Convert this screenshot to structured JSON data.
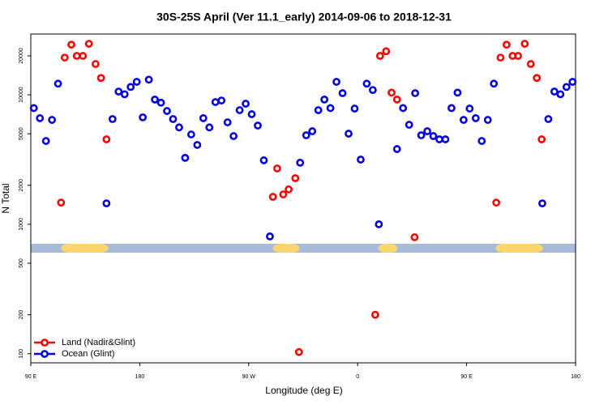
{
  "chart_data": {
    "type": "scatter",
    "title": "30S-25S April (Ver 11.1_early)   2014-09-06 to 2018-12-31",
    "x_label": "Longitude (deg E)",
    "y_label": "N Total",
    "xlim": [
      90,
      540
    ],
    "xticks": [
      {
        "value": 90,
        "label": "90 E"
      },
      180,
      {
        "value": 270,
        "label": "90 W"
      },
      {
        "value": 360,
        "label": "0"
      },
      {
        "value": 450,
        "label": "90 E"
      },
      {
        "value": 540,
        "label": "180"
      }
    ],
    "ylim": [
      85,
      29500
    ],
    "yticks": [
      100,
      200,
      500,
      1000,
      2000,
      5000,
      10000,
      20000
    ],
    "log_y": true,
    "legend": "bottom-left",
    "land_mask": {
      "ocean_color": "#a7bcd9",
      "land_color": "#fdd76e",
      "spans": [
        [
          115,
          154
        ],
        [
          290,
          312
        ],
        [
          377,
          393
        ],
        [
          474,
          513
        ]
      ]
    },
    "series": [
      {
        "name": "Land (Nadir&Glint)",
        "color": "#ff0000",
        "x": [
          115,
          118,
          123.5,
          128,
          133,
          138,
          143.5,
          148,
          152.5,
          290,
          293.5,
          298.5,
          303,
          308.5,
          311.5,
          374.5,
          378.5,
          383.5,
          388,
          392.5,
          407,
          474.5,
          478,
          483,
          488,
          492.5,
          498,
          503,
          508,
          512
        ],
        "values": [
          1470,
          19400,
          24400,
          20000,
          20000,
          24800,
          17300,
          13500,
          4530,
          1630,
          2700,
          1700,
          1860,
          2270,
          103,
          200,
          20000,
          21700,
          10400,
          9200,
          794,
          1470,
          19400,
          24400,
          20000,
          20000,
          24800,
          17300,
          13500,
          4530
        ]
      },
      {
        "name": "Ocean (Glint)",
        "color": "#0000e0",
        "x": [
          92.5,
          97.5,
          102.5,
          107.5,
          112.5,
          152.5,
          157.5,
          162.5,
          167.5,
          172.5,
          177.5,
          182.5,
          187.5,
          192.5,
          197.5,
          202.5,
          207.5,
          212.5,
          217.5,
          222.5,
          227.5,
          232.5,
          237.5,
          242.5,
          247.5,
          252.5,
          257.5,
          262.5,
          267.5,
          272.5,
          277.5,
          282.5,
          287.5,
          312.5,
          317.5,
          322.5,
          327.5,
          332.5,
          337.5,
          342.5,
          347.5,
          352.5,
          357.5,
          362.5,
          367.5,
          372.5,
          377.5,
          392.5,
          397.5,
          402.5,
          407.5,
          412.5,
          417.5,
          422.5,
          427.5,
          432.5,
          437.5,
          442.5,
          447.5,
          452.5,
          457.5,
          462.5,
          467.5,
          472.5,
          512.5,
          517.5,
          522.5,
          527.5,
          532.5,
          537.5
        ],
        "values": [
          7900,
          6600,
          4400,
          6400,
          12200,
          1450,
          6500,
          10600,
          10100,
          11500,
          12600,
          6700,
          13100,
          9200,
          8700,
          7500,
          6500,
          5600,
          3260,
          4940,
          4100,
          6600,
          5600,
          8790,
          9040,
          6130,
          4800,
          7610,
          8540,
          7080,
          5790,
          3120,
          806,
          2990,
          4870,
          5230,
          7610,
          9200,
          7900,
          12600,
          10300,
          5010,
          7830,
          3160,
          12200,
          10900,
          1000,
          3810,
          7900,
          5870,
          10300,
          4870,
          5230,
          4800,
          4530,
          4530,
          7900,
          10400,
          6400,
          7830,
          6600,
          4400,
          6400,
          12200,
          1450,
          6500,
          10600,
          10100,
          11500,
          12600
        ]
      }
    ]
  }
}
